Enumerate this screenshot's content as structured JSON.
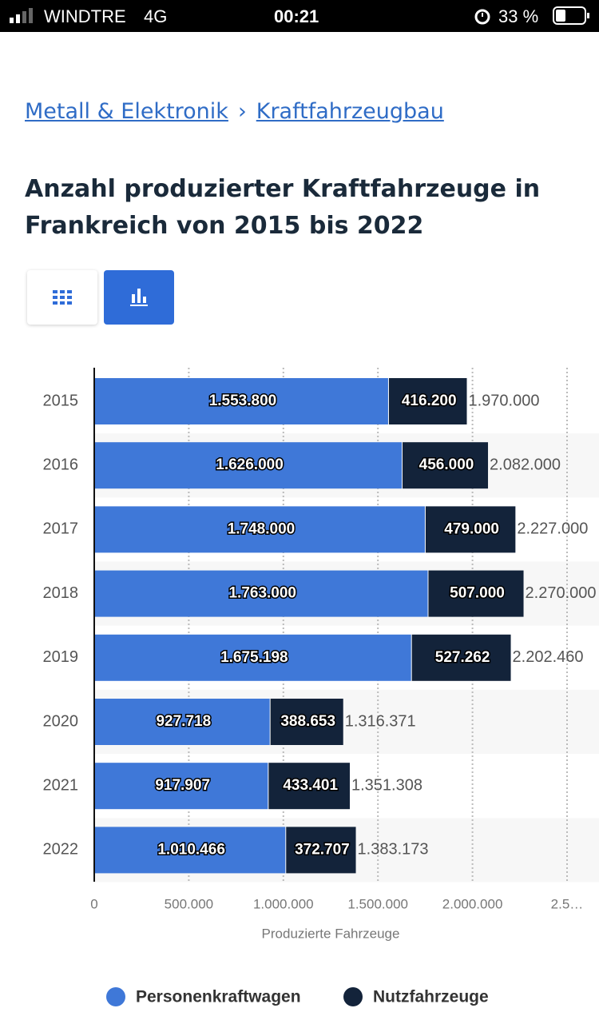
{
  "status_bar": {
    "carrier": "WINDTRE",
    "network": "4G",
    "time": "00:21",
    "battery": "33 %"
  },
  "breadcrumb": {
    "items": [
      "Metall & Elektronik",
      "Kraftfahrzeugbau"
    ],
    "separator": "›"
  },
  "title": "Anzahl produzierter Kraftfahrzeuge in Frankreich von 2015 bis 2022",
  "chart_data": {
    "type": "bar",
    "orientation": "horizontal",
    "stacked": true,
    "categories": [
      "2015",
      "2016",
      "2017",
      "2018",
      "2019",
      "2020",
      "2021",
      "2022"
    ],
    "series": [
      {
        "name": "Personenkraftwagen",
        "color": "#3f78d8",
        "values": [
          1553800,
          1626000,
          1748000,
          1763000,
          1675198,
          927718,
          917907,
          1010466
        ],
        "value_labels": [
          "1.553.800",
          "1.626.000",
          "1.748.000",
          "1.763.000",
          "1.675.198",
          "927.718",
          "917.907",
          "1.010.466"
        ]
      },
      {
        "name": "Nutzfahrzeuge",
        "color": "#13233a",
        "values": [
          416200,
          456000,
          479000,
          507000,
          527262,
          388653,
          433401,
          372707
        ],
        "value_labels": [
          "416.200",
          "456.000",
          "479.000",
          "507.000",
          "527.262",
          "388.653",
          "433.401",
          "372.707"
        ]
      }
    ],
    "totals": {
      "values": [
        1970000,
        2082000,
        2227000,
        2270000,
        2202460,
        1316371,
        1351308,
        1383173
      ],
      "value_labels": [
        "1.970.000",
        "2.082.000",
        "2.227.000",
        "2.270.000",
        "2.202.460",
        "1.316.371",
        "1.351.308",
        "1.383.173"
      ]
    },
    "xlim": [
      0,
      2500000
    ],
    "xticks": [
      0,
      {
        "value": 500000,
        "label": "500.000"
      },
      {
        "value": 1000000,
        "label": "1.000.000"
      },
      {
        "value": 1500000,
        "label": "1.500.000"
      },
      {
        "value": 2000000,
        "label": "2.000.000"
      },
      {
        "value": 2500000,
        "label": "2.5…"
      }
    ],
    "x_label": "Produzierte Fahrzeuge",
    "grid": true,
    "legend": "bottom"
  }
}
